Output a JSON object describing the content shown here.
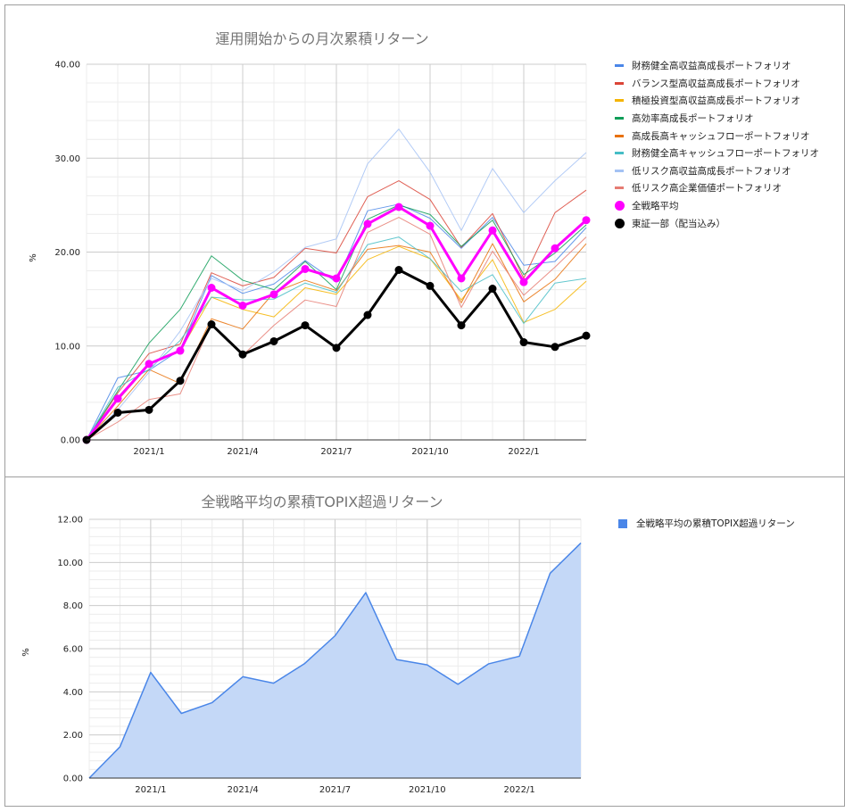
{
  "chart_data": [
    {
      "type": "line",
      "title": "運用開始からの月次累積リターン",
      "ylabel": "%",
      "ylim": [
        0,
        40
      ],
      "yticks": [
        "0.00",
        "10.00",
        "20.00",
        "30.00",
        "40.00"
      ],
      "xtick_labels": [
        "2021/1",
        "2021/4",
        "2021/7",
        "2021/10",
        "2022/1"
      ],
      "grid": true,
      "legend_position": "right",
      "series": [
        {
          "name": "財務健全高収益高成長ポートフォリオ",
          "color": "#4a86e8",
          "width": 1,
          "marker": false,
          "values": [
            0,
            6.6,
            7.4,
            9.6,
            17.5,
            15.6,
            16.6,
            19.1,
            16.8,
            24.4,
            25.1,
            23.6,
            20.4,
            23.7,
            18.6,
            19.0,
            22.6
          ]
        },
        {
          "name": "バランス型高収益高成長ポートフォリオ",
          "color": "#db4437",
          "width": 1,
          "marker": false,
          "values": [
            0,
            5.0,
            9.2,
            10.2,
            17.8,
            16.4,
            17.3,
            20.4,
            19.9,
            25.9,
            27.6,
            25.6,
            20.5,
            24.1,
            17.2,
            24.2,
            26.6
          ]
        },
        {
          "name": "積極投資型高収益高成長ポートフォリオ",
          "color": "#f4b400",
          "width": 1,
          "marker": false,
          "values": [
            0,
            4.2,
            8.0,
            9.5,
            15.2,
            13.9,
            13.1,
            16.2,
            15.5,
            19.2,
            20.6,
            19.3,
            14.9,
            19.2,
            12.5,
            13.9,
            16.9
          ]
        },
        {
          "name": "高効率高成長ポートフォリオ",
          "color": "#0f9d58",
          "width": 1,
          "marker": false,
          "values": [
            0,
            5.2,
            10.3,
            13.9,
            19.6,
            17.0,
            16.0,
            19.0,
            16.0,
            23.5,
            25.0,
            24.0,
            20.6,
            23.4,
            17.6,
            19.9,
            22.9
          ]
        },
        {
          "name": "高成長高キャッシュフローポートフォリオ",
          "color": "#e8710a",
          "width": 1,
          "marker": false,
          "values": [
            0,
            3.6,
            7.5,
            6.0,
            12.9,
            11.8,
            15.7,
            17.0,
            15.9,
            20.3,
            20.7,
            20.0,
            14.6,
            20.9,
            14.7,
            17.1,
            20.9
          ]
        },
        {
          "name": "財務健全高キャッシュフローポートフォリオ",
          "color": "#46bdc6",
          "width": 1,
          "marker": false,
          "values": [
            0,
            5.6,
            7.5,
            10.6,
            15.2,
            14.9,
            15.0,
            16.7,
            15.7,
            20.8,
            21.6,
            19.3,
            15.8,
            17.6,
            12.4,
            16.7,
            17.2
          ]
        },
        {
          "name": "低リスク高収益高成長ポートフォリオ",
          "color": "#a4c2f4",
          "width": 1,
          "marker": false,
          "values": [
            0,
            3.2,
            7.2,
            11.6,
            17.2,
            15.9,
            17.9,
            20.5,
            21.4,
            29.4,
            33.1,
            28.5,
            22.3,
            28.9,
            24.2,
            27.6,
            30.6
          ]
        },
        {
          "name": "低リスク高企業価値ポートフォリオ",
          "color": "#e67c73",
          "width": 1,
          "marker": false,
          "values": [
            0,
            1.9,
            4.3,
            4.9,
            12.4,
            9.0,
            12.2,
            14.9,
            14.2,
            22.1,
            23.7,
            21.9,
            14.1,
            20.1,
            15.4,
            18.4,
            21.6
          ]
        },
        {
          "name": "全戦略平均",
          "color": "#ff00ff",
          "width": 3,
          "marker": true,
          "values": [
            0,
            4.4,
            8.1,
            9.5,
            16.2,
            14.3,
            15.5,
            18.2,
            17.2,
            23.0,
            24.8,
            22.8,
            17.2,
            22.3,
            16.8,
            20.4,
            23.4
          ]
        },
        {
          "name": "東証一部（配当込み）",
          "color": "#000000",
          "width": 3,
          "marker": true,
          "values": [
            0,
            2.9,
            3.2,
            6.3,
            12.3,
            9.1,
            10.5,
            12.2,
            9.8,
            13.3,
            18.1,
            16.4,
            12.2,
            16.1,
            10.4,
            9.9,
            11.1
          ]
        }
      ]
    },
    {
      "type": "area",
      "title": "全戦略平均の累積TOPIX超過リターン",
      "ylabel": "%",
      "ylim": [
        0,
        12
      ],
      "yticks": [
        "0.00",
        "2.00",
        "4.00",
        "6.00",
        "8.00",
        "10.00",
        "12.00"
      ],
      "xtick_labels": [
        "2021/1",
        "2021/4",
        "2021/7",
        "2021/10",
        "2022/1"
      ],
      "grid": true,
      "legend_position": "right",
      "series": [
        {
          "name": "全戦略平均の累積TOPIX超過リターン",
          "color": "#4a86e8",
          "values": [
            0,
            1.45,
            4.9,
            3.0,
            3.5,
            4.7,
            4.4,
            5.3,
            6.6,
            8.6,
            5.5,
            5.25,
            4.35,
            5.3,
            5.65,
            9.5,
            10.9
          ]
        }
      ]
    }
  ]
}
